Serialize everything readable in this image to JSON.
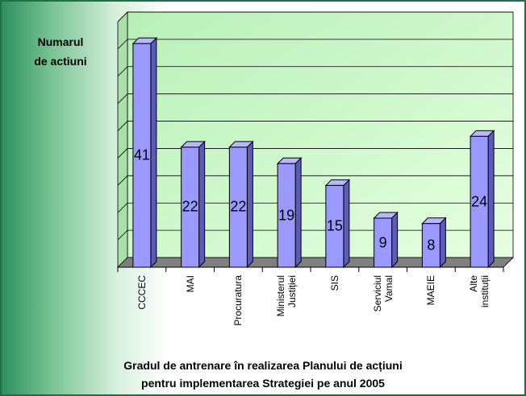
{
  "chart_data": {
    "type": "bar3d",
    "title": "Gradul de antrenare în realizarea Planului de acțiuni\npentru implementarea Strategiei pe anul 2005",
    "y_axis_label": "Numarul\nde actiuni",
    "categories": [
      "CCCEC",
      "MAI",
      "Procuratura",
      "Ministerul\nJustiției",
      "SIS",
      "Serviciul\nVamal",
      "MAEIE",
      "Alte instituții"
    ],
    "values": [
      41,
      22,
      22,
      19,
      15,
      9,
      8,
      24
    ],
    "color": "#9999ff",
    "ylim": [
      0,
      45
    ],
    "yticks": [
      0,
      5,
      10,
      15,
      20,
      25,
      30,
      35,
      40,
      45
    ],
    "grid": true
  }
}
